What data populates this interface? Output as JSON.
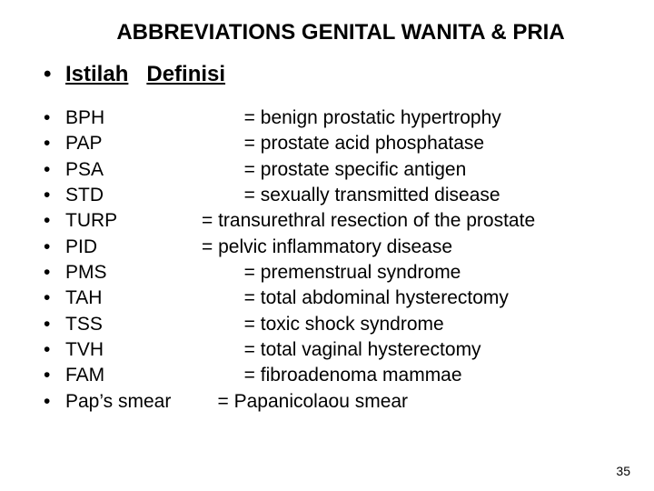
{
  "title": "ABBREVIATIONS GENITAL WANITA & PRIA",
  "header": {
    "term": "Istilah",
    "def": "Definisi"
  },
  "items": [
    {
      "term": "BPH",
      "def": "        = benign prostatic hypertrophy"
    },
    {
      "term": "PAP",
      "def": "        = prostate acid phosphatase"
    },
    {
      "term": "PSA",
      "def": "        = prostate specific antigen"
    },
    {
      "term": "STD",
      "def": "        = sexually transmitted disease"
    },
    {
      "term": "TURP",
      "def": "= transurethral resection of the prostate"
    },
    {
      "term": "PID",
      "def": "= pelvic inflammatory disease"
    },
    {
      "term": "PMS",
      "def": "        = premenstrual syndrome"
    },
    {
      "term": "TAH",
      "def": "        = total abdominal hysterectomy"
    },
    {
      "term": "TSS",
      "def": "        = toxic shock syndrome"
    },
    {
      "term": "TVH",
      "def": "        = total vaginal hysterectomy"
    },
    {
      "term": "FAM",
      "def": "        = fibroadenoma mammae"
    },
    {
      "term": "Pap’s smear",
      "def": "   = Papanicolaou smear"
    }
  ],
  "pageNumber": "35",
  "bulletChar": "•",
  "termColWidth": 150
}
